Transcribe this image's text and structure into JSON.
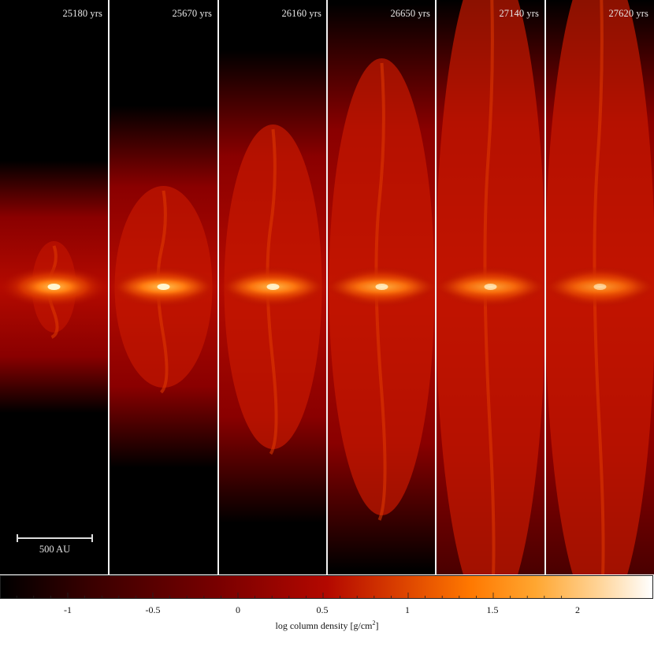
{
  "panels": [
    {
      "time": "25180 yrs",
      "stage": 0
    },
    {
      "time": "25670 yrs",
      "stage": 1
    },
    {
      "time": "26160 yrs",
      "stage": 2
    },
    {
      "time": "26650 yrs",
      "stage": 3
    },
    {
      "time": "27140 yrs",
      "stage": 4
    },
    {
      "time": "27620 yrs",
      "stage": 5
    }
  ],
  "scale_bar": {
    "label": "500 AU"
  },
  "colorbar": {
    "ticks": [
      "-1",
      "-0.5",
      "0",
      "0.5",
      "1",
      "1.5",
      "2"
    ],
    "title_main": "log column density [g/cm",
    "title_sup": "2",
    "title_end": "]"
  }
}
